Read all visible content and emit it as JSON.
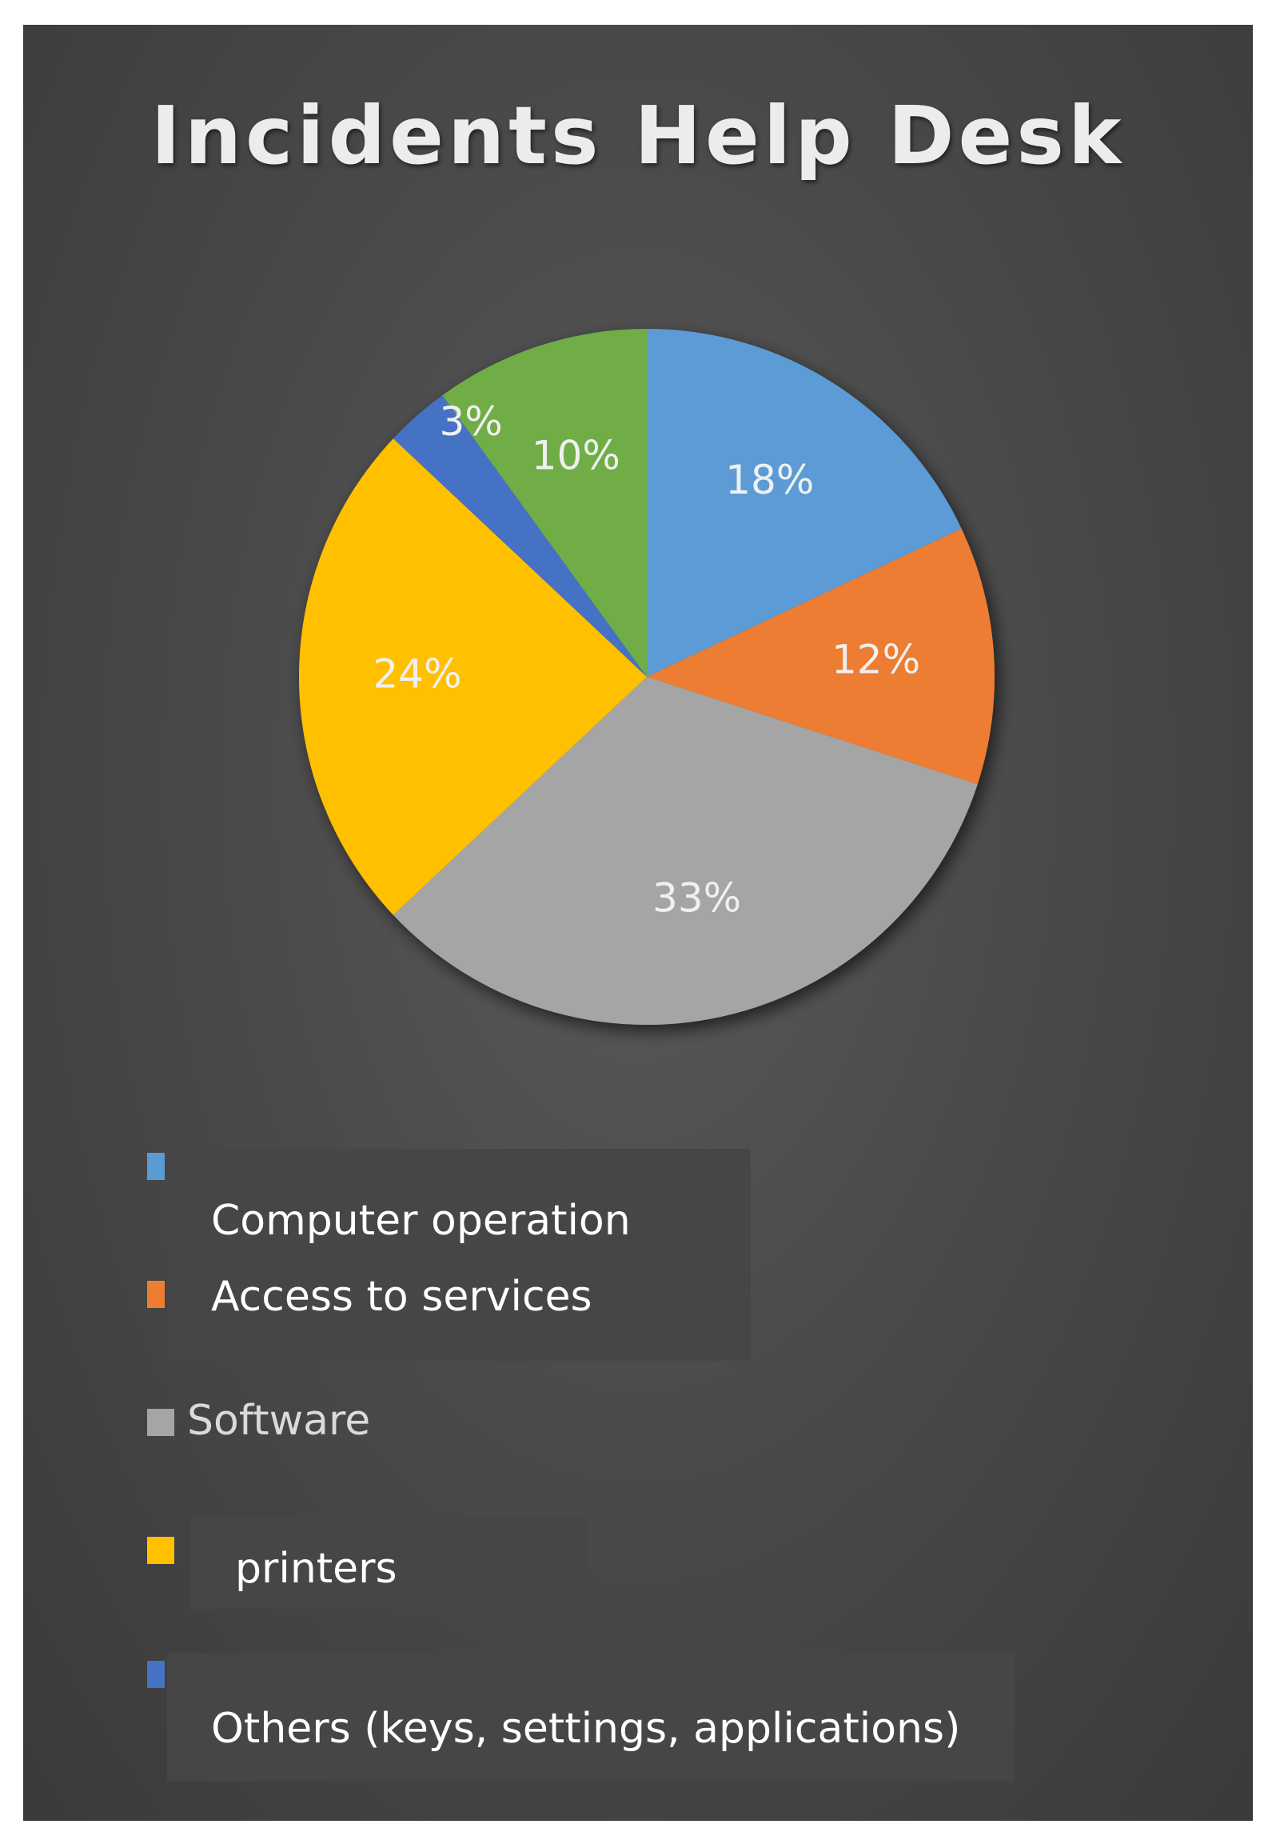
{
  "chart_data": {
    "type": "pie",
    "title": "Incidents Help Desk",
    "categories": [
      "Computer operation",
      "Access to services",
      "Software",
      "printers",
      "Others (keys, settings, applications)",
      ""
    ],
    "values": [
      18,
      12,
      33,
      24,
      3,
      10
    ],
    "value_labels": [
      "18%",
      "12%",
      "33%",
      "24%",
      "3%",
      "10%"
    ],
    "colors": [
      "#5b9bd5",
      "#ed7d31",
      "#a5a5a5",
      "#ffc000",
      "#4472c4",
      "#70ad47"
    ],
    "legend_position": "bottom"
  }
}
